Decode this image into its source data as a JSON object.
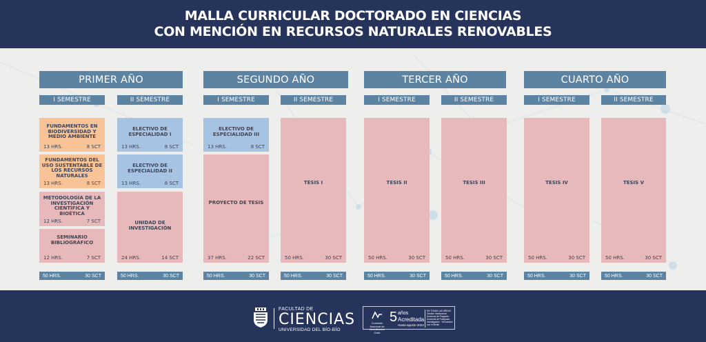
{
  "title": {
    "line1": "MALLA CURRICULAR DOCTORADO EN CIENCIAS",
    "line2": "CON MENCIÓN EN RECURSOS NATURALES RENOVABLES"
  },
  "years": [
    "PRIMER AÑO",
    "SEGUNDO AÑO",
    "TERCER AÑO",
    "CUARTO AÑO"
  ],
  "semesters": [
    "I SEMESTRE",
    "II SEMESTRE",
    "I SEMESTRE",
    "II SEMESTRE",
    "I SEMESTRE",
    "II SEMESTRE",
    "I SEMESTRE",
    "II SEMESTRE"
  ],
  "courses": [
    {
      "name": "FUNDAMENTOS EN BIODIVERSIDAD Y MEDIO AMBIENTE",
      "hrs": "13 HRS.",
      "sct": "8 SCT",
      "color": "#f8c497"
    },
    {
      "name": "FUNDAMENTOS DEL USO SUSTENTABLE DE LOS RECURSOS NATURALES",
      "hrs": "13 HRS.",
      "sct": "8 SCT",
      "color": "#f8c497"
    },
    {
      "name": "METODOLOGÍA DE LA INVESTIGACIÓN CIENTÍFICA Y BIOÉTICA",
      "hrs": "12 HRS.",
      "sct": "7 SCT",
      "color": "#e7b9bb"
    },
    {
      "name": "SEMINARIO BIBLIOGRÁFICO",
      "hrs": "12 HRS.",
      "sct": "7 SCT",
      "color": "#e7b9bb"
    },
    {
      "name": "ELECTIVO DE ESPECIALIDAD I",
      "hrs": "13 HRS.",
      "sct": "8 SCT",
      "color": "#a7c3e3"
    },
    {
      "name": "ELECTIVO DE ESPECIALIDAD II",
      "hrs": "13 HRS.",
      "sct": "8 SCT",
      "color": "#a7c3e3"
    },
    {
      "name": "UNIDAD DE INVESTIGACIÓN",
      "hrs": "24 HRS.",
      "sct": "14 SCT",
      "color": "#e7b9bb"
    },
    {
      "name": "ELECTIVO DE ESPECIALIDAD III",
      "hrs": "13 HRS.",
      "sct": "8 SCT",
      "color": "#a7c3e3"
    },
    {
      "name": "PROYECTO DE TESIS",
      "hrs": "37 HRS.",
      "sct": "22 SCT",
      "color": "#e7b9bb"
    },
    {
      "name": "TESIS I",
      "hrs": "50 HRS.",
      "sct": "30 SCT",
      "color": "#e7b9bb"
    },
    {
      "name": "TESIS II",
      "hrs": "50 HRS.",
      "sct": "30 SCT",
      "color": "#e7b9bb"
    },
    {
      "name": "TESIS III",
      "hrs": "50 HRS.",
      "sct": "30 SCT",
      "color": "#e7b9bb"
    },
    {
      "name": "TESIS IV",
      "hrs": "50 HRS.",
      "sct": "30 SCT",
      "color": "#e7b9bb"
    },
    {
      "name": "TESIS V",
      "hrs": "50 HRS.",
      "sct": "30 SCT",
      "color": "#e7b9bb"
    }
  ],
  "totals": [
    {
      "hrs": "50 HRS.",
      "sct": "30 SCT"
    },
    {
      "hrs": "50 HRS.",
      "sct": "30 SCT"
    },
    {
      "hrs": "50 HRS.",
      "sct": "30 SCT"
    },
    {
      "hrs": "50 HRS.",
      "sct": "30 SCT"
    },
    {
      "hrs": "50 HRS.",
      "sct": "30 SCT"
    },
    {
      "hrs": "50 HRS.",
      "sct": "30 SCT"
    },
    {
      "hrs": "50 HRS.",
      "sct": "30 SCT"
    },
    {
      "hrs": "50 HRS.",
      "sct": "30 SCT"
    }
  ],
  "footer": {
    "faculty_small": "FACULTAD DE",
    "faculty_big": "CIENCIAS",
    "university": "UNIVERSIDAD DEL BÍO-BÍO",
    "accreditation": {
      "cna": "Comisión Nacional de Acreditación Chile",
      "years_number": "5",
      "years_word": "años",
      "accredited": "Acreditada",
      "until": "Hasta agosto 2024",
      "areas_title": "EN TODAS LAS ÁREAS",
      "areas": "Gestión Institucional · Docencia de Pregrado · Docencia de Postgrado · Investigación · Vinculación con el Medio"
    }
  },
  "colors": {
    "navy": "#26335b",
    "header_blue": "#5d83a3",
    "orange": "#f8c497",
    "blue": "#a7c3e3",
    "pink": "#e7b9bb"
  }
}
